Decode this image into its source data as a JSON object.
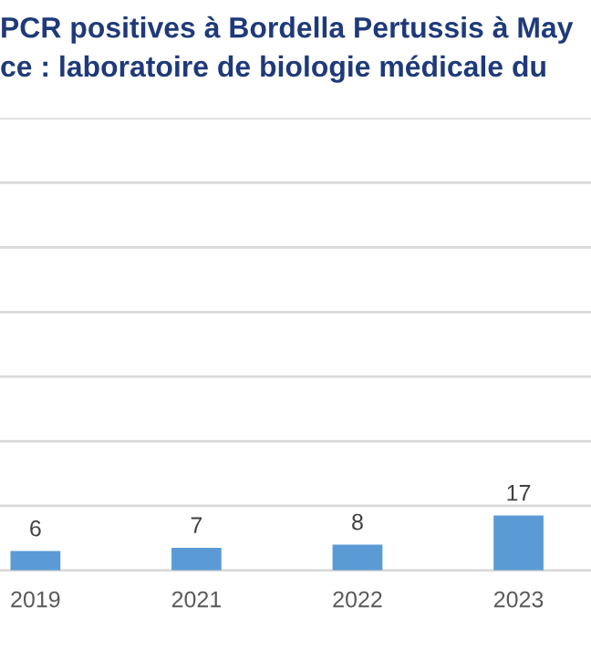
{
  "chart_data": {
    "type": "bar",
    "title": "PCR positives à Bordella Pertussis à May",
    "subtitle": "ce : laboratoire de biologie médicale du",
    "categories": [
      "2019",
      "2021",
      "2022",
      "2023"
    ],
    "values": [
      6,
      7,
      8,
      17
    ],
    "color": "#5b9bd5",
    "data_labels": true,
    "ylim": [
      0,
      140
    ],
    "yticks": [
      {
        "value": 0,
        "label": null
      },
      {
        "value": 20,
        "label": null
      },
      {
        "value": 40,
        "label": null
      },
      {
        "value": 60,
        "label": null
      },
      {
        "value": 80,
        "label": null
      },
      {
        "value": 100,
        "label": null
      },
      {
        "value": 120,
        "label": null
      },
      {
        "value": 140,
        "label": null
      }
    ],
    "grid": "y",
    "tick_labels": "x",
    "legend": false
  }
}
